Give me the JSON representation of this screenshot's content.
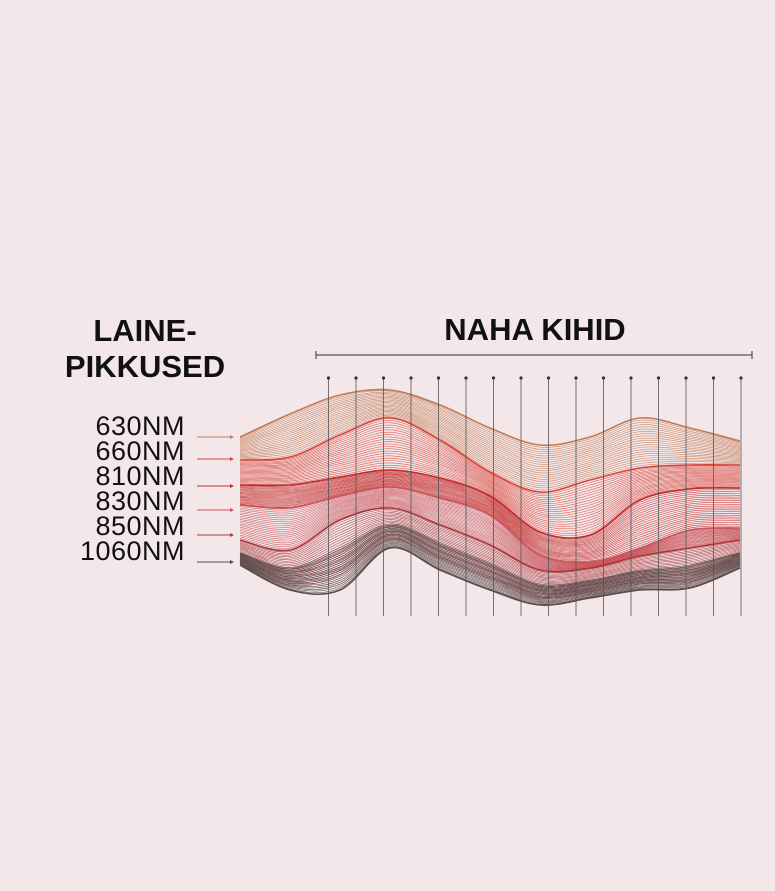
{
  "left_title": {
    "line1": "LAINE-",
    "line2": "PIKKUSED"
  },
  "right_title": "NAHA KIHID",
  "wavelengths": [
    {
      "label": "630NM",
      "color": "#c27a52"
    },
    {
      "label": "660NM",
      "color": "#d8453a"
    },
    {
      "label": "810NM",
      "color": "#c42c2a"
    },
    {
      "label": "830NM",
      "color": "#c9555a"
    },
    {
      "label": "850NM",
      "color": "#a8383a"
    },
    {
      "label": "1060NM",
      "color": "#5b4a4b"
    }
  ],
  "background": "#f3e7ea"
}
